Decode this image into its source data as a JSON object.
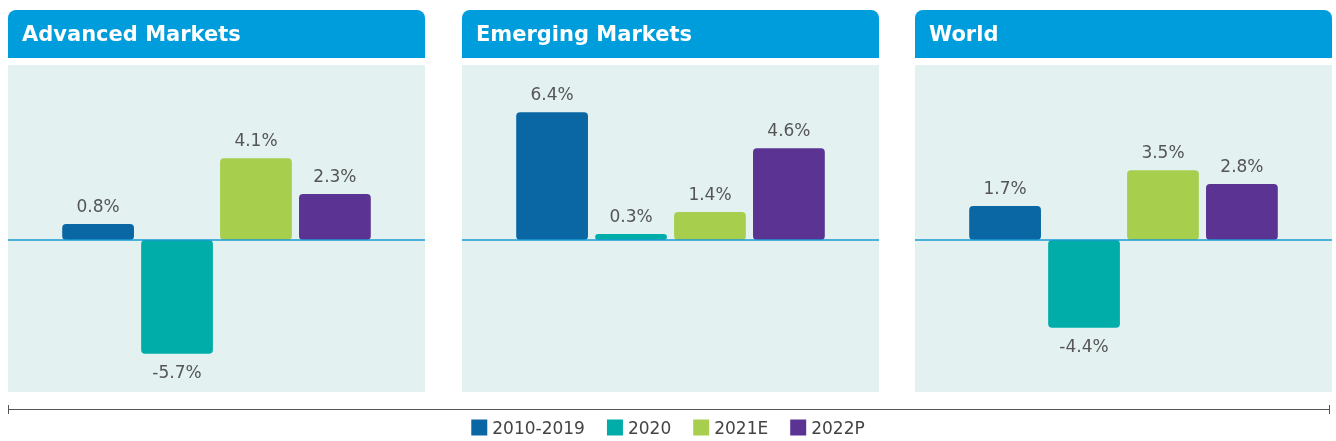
{
  "chart_data": [
    {
      "type": "bar",
      "title": "Advanced Markets",
      "categories": [
        null
      ],
      "legend": "bottom",
      "grid": false,
      "ref_lines": [
        {
          "axis": "y",
          "value": 0,
          "color": "#1a9ad6"
        }
      ],
      "series": [
        {
          "name": "2010-2019",
          "color": "#0a67a3",
          "values": [
            0.8
          ],
          "value_labels": [
            "0.8%"
          ]
        },
        {
          "name": "2020",
          "color": "#00ada9",
          "values": [
            -5.7
          ],
          "value_labels": [
            "-5.7%"
          ]
        },
        {
          "name": "2021E",
          "color": "#a7cf4d",
          "values": [
            4.1
          ],
          "value_labels": [
            "4.1%"
          ]
        },
        {
          "name": "2022P",
          "color": "#5b3393",
          "values": [
            2.3
          ],
          "value_labels": [
            "2.3%"
          ]
        }
      ]
    },
    {
      "type": "bar",
      "title": "Emerging Markets",
      "categories": [
        null
      ],
      "legend": "bottom",
      "grid": false,
      "ref_lines": [
        {
          "axis": "y",
          "value": 0,
          "color": "#1a9ad6"
        }
      ],
      "series": [
        {
          "name": "2010-2019",
          "color": "#0a67a3",
          "values": [
            6.4
          ],
          "value_labels": [
            "6.4%"
          ]
        },
        {
          "name": "2020",
          "color": "#00ada9",
          "values": [
            0.3
          ],
          "value_labels": [
            "0.3%"
          ]
        },
        {
          "name": "2021E",
          "color": "#a7cf4d",
          "values": [
            1.4
          ],
          "value_labels": [
            "1.4%"
          ]
        },
        {
          "name": "2022P",
          "color": "#5b3393",
          "values": [
            4.6
          ],
          "value_labels": [
            "4.6%"
          ]
        }
      ]
    },
    {
      "type": "bar",
      "title": "World",
      "categories": [
        null
      ],
      "legend": "bottom",
      "grid": false,
      "ref_lines": [
        {
          "axis": "y",
          "value": 0,
          "color": "#1a9ad6"
        }
      ],
      "series": [
        {
          "name": "2010-2019",
          "color": "#0a67a3",
          "values": [
            1.7
          ],
          "value_labels": [
            "1.7%"
          ]
        },
        {
          "name": "2020",
          "color": "#00ada9",
          "values": [
            -4.4
          ],
          "value_labels": [
            "-4.4%"
          ]
        },
        {
          "name": "2021E",
          "color": "#a7cf4d",
          "values": [
            3.5
          ],
          "value_labels": [
            "3.5%"
          ]
        },
        {
          "name": "2022P",
          "color": "#5b3393",
          "values": [
            2.8
          ],
          "value_labels": [
            "2.8%"
          ]
        }
      ]
    }
  ]
}
